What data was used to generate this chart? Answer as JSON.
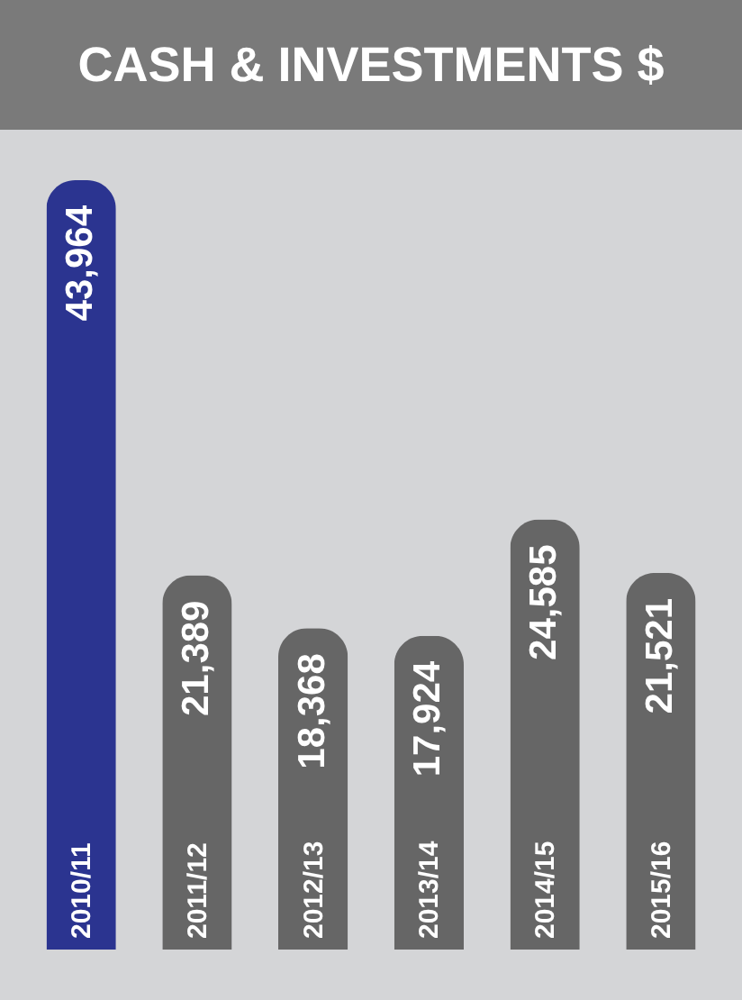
{
  "chart_data": {
    "type": "bar",
    "title": "CASH & INVESTMENTS $",
    "categories": [
      "2010/11",
      "2011/12",
      "2012/13",
      "2013/14",
      "2014/15",
      "2015/16"
    ],
    "values": [
      43964,
      21389,
      18368,
      17924,
      24585,
      21521
    ],
    "colors": [
      "#2b3490",
      "#666666",
      "#666666",
      "#666666",
      "#666666",
      "#666666"
    ],
    "value_labels": [
      "43,964",
      "21,389",
      "18,368",
      "17,924",
      "24,585",
      "21,521"
    ]
  }
}
